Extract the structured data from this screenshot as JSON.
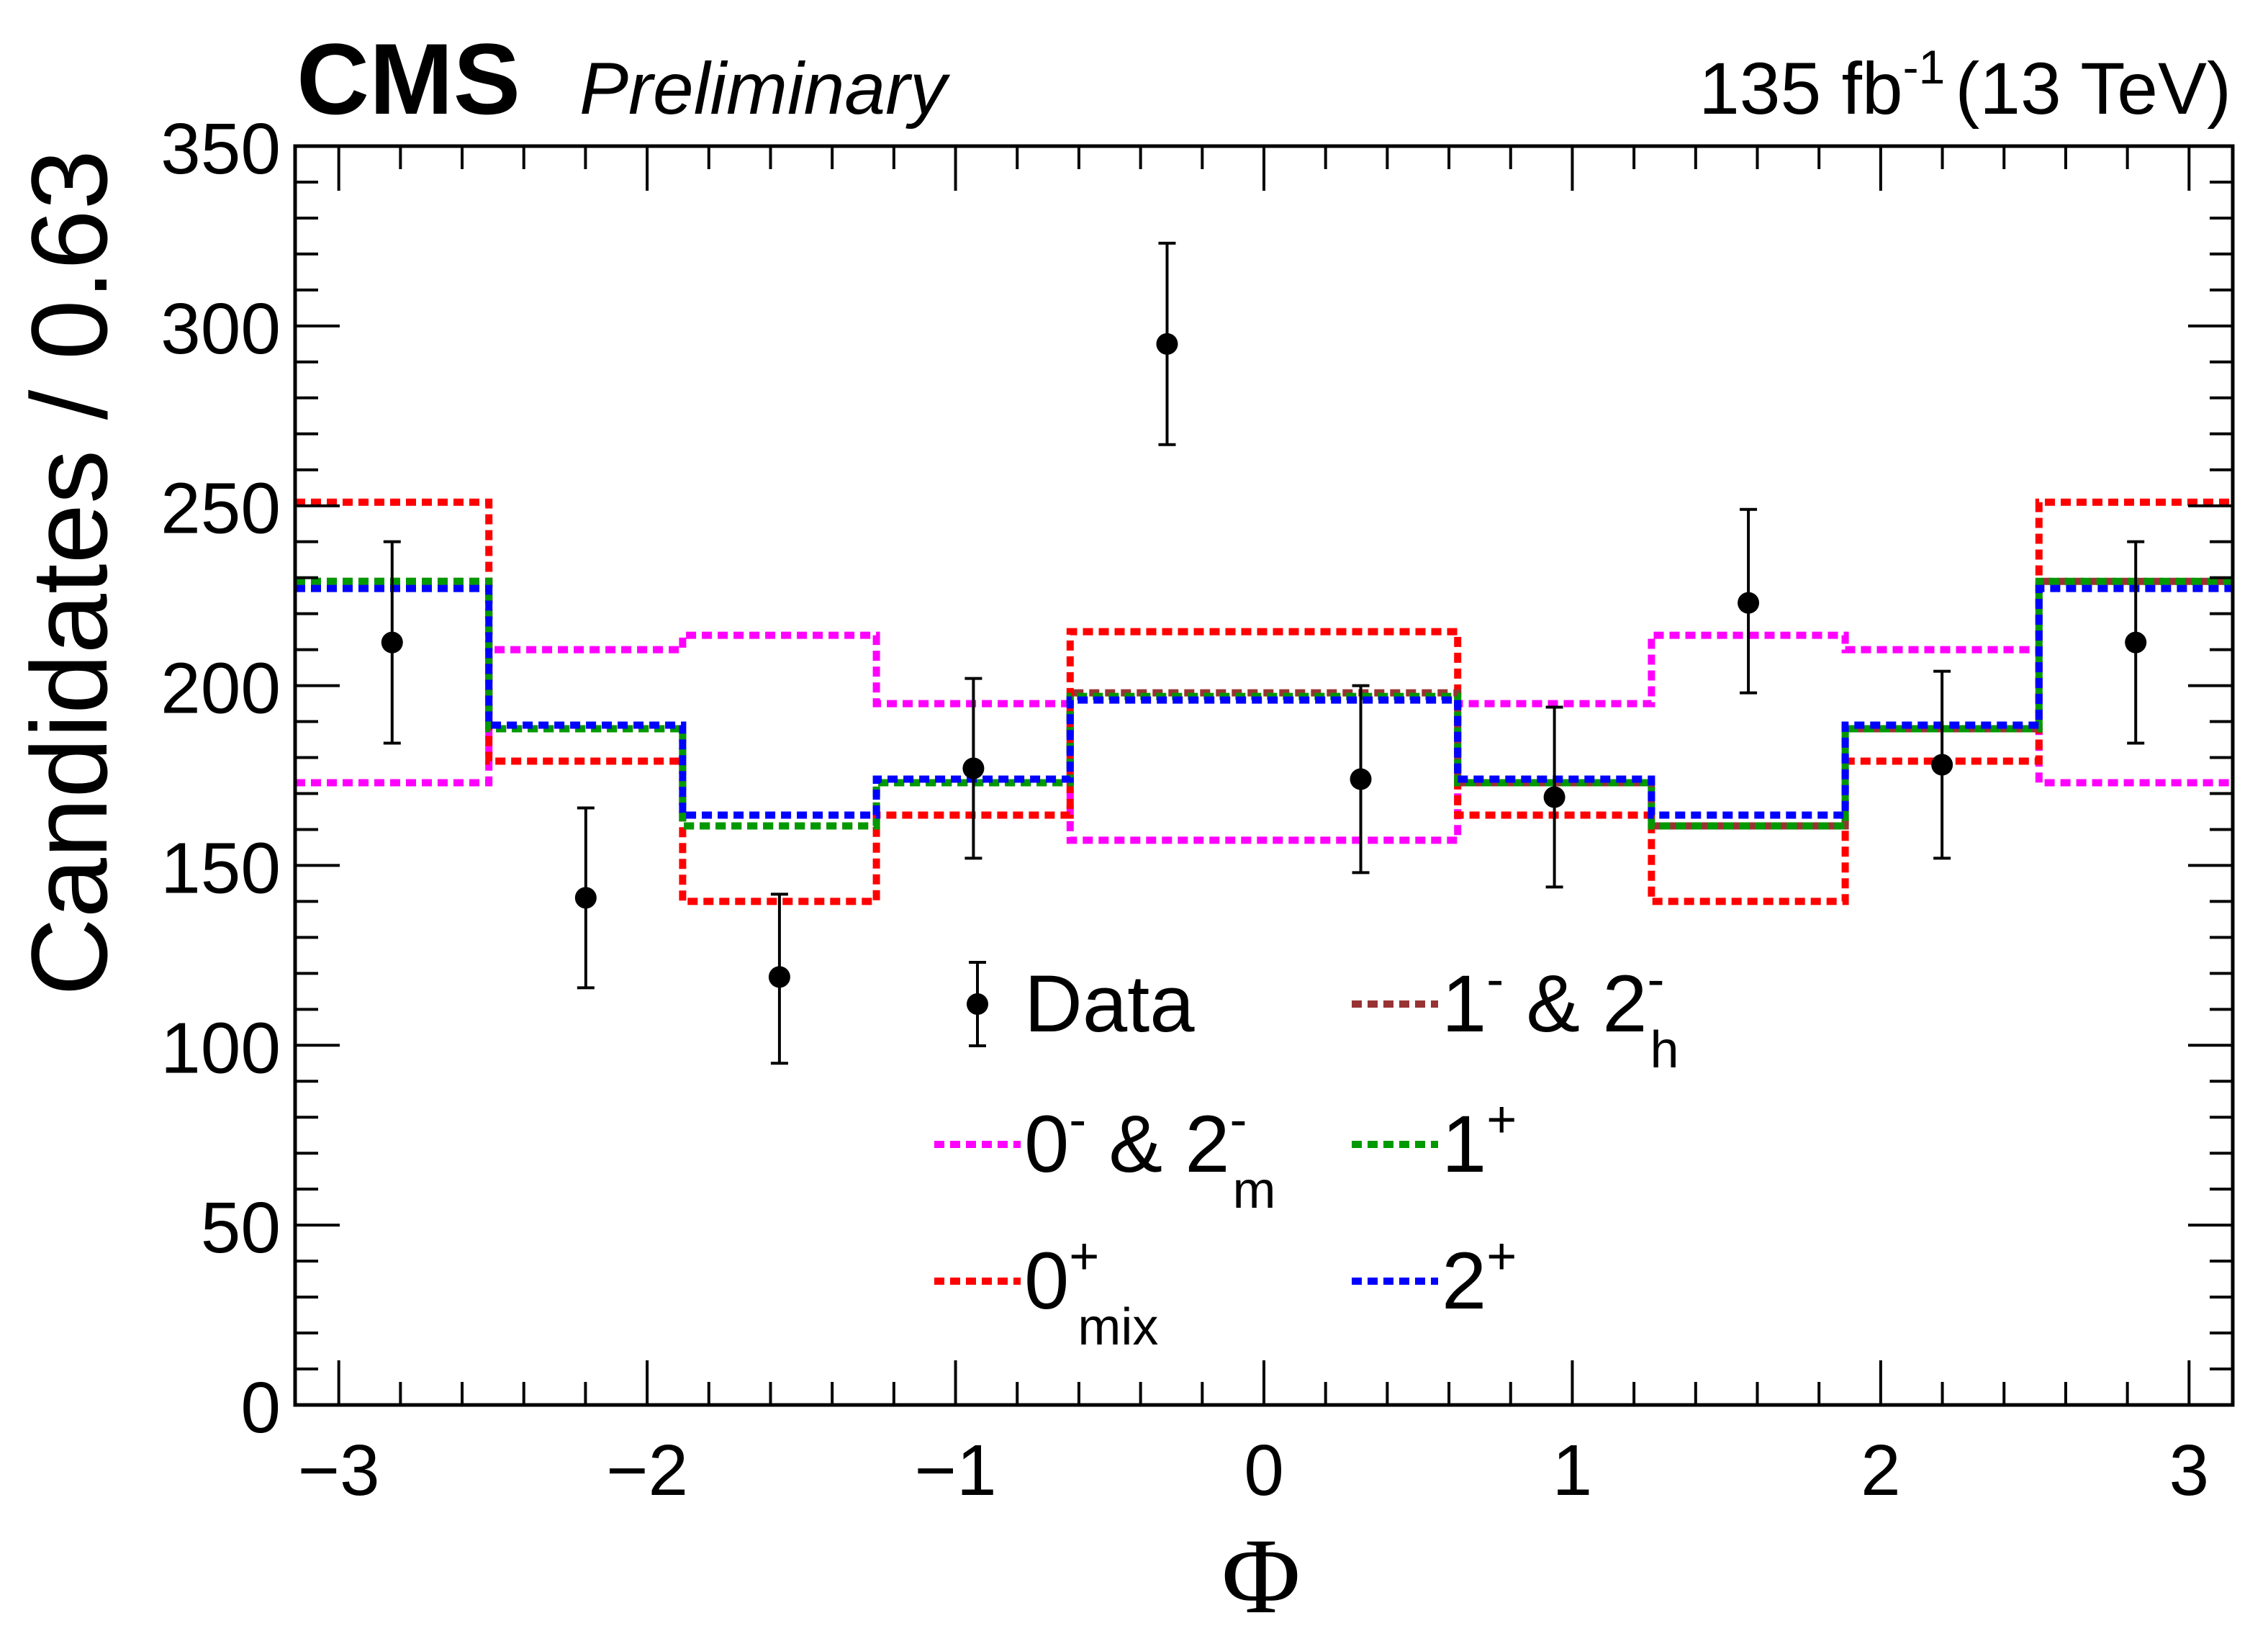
{
  "header": {
    "experiment": "CMS",
    "status": "Preliminary",
    "lumi_value": "135 fb",
    "lumi_exponent": "-1",
    "energy": "(13 TeV)"
  },
  "colors": {
    "data": "#000000",
    "m0minus_2m": "#ff00ff",
    "mix0plus": "#ff0000",
    "m1minus_2h": "#993333",
    "m1plus": "#009900",
    "m2plus": "#0000ff"
  },
  "chart_data": {
    "type": "histogram",
    "title": "",
    "xlabel": "Φ",
    "ylabel": "Candidates / 0.63",
    "xlim": [
      -3.1416,
      3.1416
    ],
    "ylim": [
      0,
      350
    ],
    "xticks": [
      -3,
      -2,
      -1,
      0,
      1,
      2,
      3
    ],
    "xtick_labels": [
      "−3",
      "−2",
      "−1",
      "0",
      "1",
      "2",
      "3"
    ],
    "yticks": [
      0,
      50,
      100,
      150,
      200,
      250,
      300,
      350
    ],
    "ytick_labels": [
      "0",
      "50",
      "100",
      "150",
      "200",
      "250",
      "300",
      "350"
    ],
    "bin_edges": [
      -3.1416,
      -2.5133,
      -1.885,
      -1.2566,
      -0.6283,
      0,
      0.6283,
      1.2566,
      1.885,
      2.5133,
      3.1416
    ],
    "data": {
      "name": "Data",
      "x": [
        -2.827,
        -2.199,
        -1.571,
        -0.942,
        -0.314,
        0.314,
        0.942,
        1.571,
        2.199,
        2.827
      ],
      "y": [
        212,
        141,
        119,
        177,
        295,
        174,
        169,
        223,
        178,
        212
      ],
      "err_low": [
        28,
        25,
        24,
        25,
        28,
        26,
        25,
        25,
        26,
        28
      ],
      "err_high": [
        28,
        25,
        23,
        25,
        28,
        26,
        25,
        26,
        26,
        28
      ]
    },
    "series": [
      {
        "id": "m0minus_2m",
        "name": "0⁻ & 2⁻m",
        "values": [
          173,
          210,
          214,
          195,
          157,
          157,
          195,
          214,
          210,
          173
        ]
      },
      {
        "id": "mix0plus",
        "name": "0⁺mix",
        "values": [
          251,
          179,
          140,
          164,
          215,
          215,
          164,
          140,
          179,
          251
        ]
      },
      {
        "id": "m1minus_2h",
        "name": "1⁻ & 2⁻h",
        "values": [
          229,
          188,
          161,
          173,
          198,
          198,
          173,
          161,
          188,
          229
        ]
      },
      {
        "id": "m1plus",
        "name": "1⁺",
        "values": [
          229,
          188,
          161,
          173,
          197,
          197,
          173,
          161,
          188,
          229
        ]
      },
      {
        "id": "m2plus",
        "name": "2⁺",
        "values": [
          227,
          189,
          164,
          174,
          196,
          196,
          174,
          164,
          189,
          227
        ]
      }
    ],
    "legend": {
      "position": "bottom-center",
      "entries": [
        {
          "series": "data",
          "text": "Data",
          "sup": "",
          "sub": ""
        },
        {
          "series": "m1minus_2h",
          "text": "1",
          "sup": "-",
          "mid": " & 2",
          "sup2": "-",
          "sub": "h"
        },
        {
          "series": "m0minus_2m",
          "text": "0",
          "sup": "-",
          "mid": " & 2",
          "sup2": "-",
          "sub": "m"
        },
        {
          "series": "m1plus",
          "text": "1",
          "sup": "+",
          "sub": ""
        },
        {
          "series": "mix0plus",
          "text": "0",
          "sup": "+",
          "sub": "mix"
        },
        {
          "series": "m2plus",
          "text": "2",
          "sup": "+",
          "sub": ""
        }
      ]
    }
  }
}
